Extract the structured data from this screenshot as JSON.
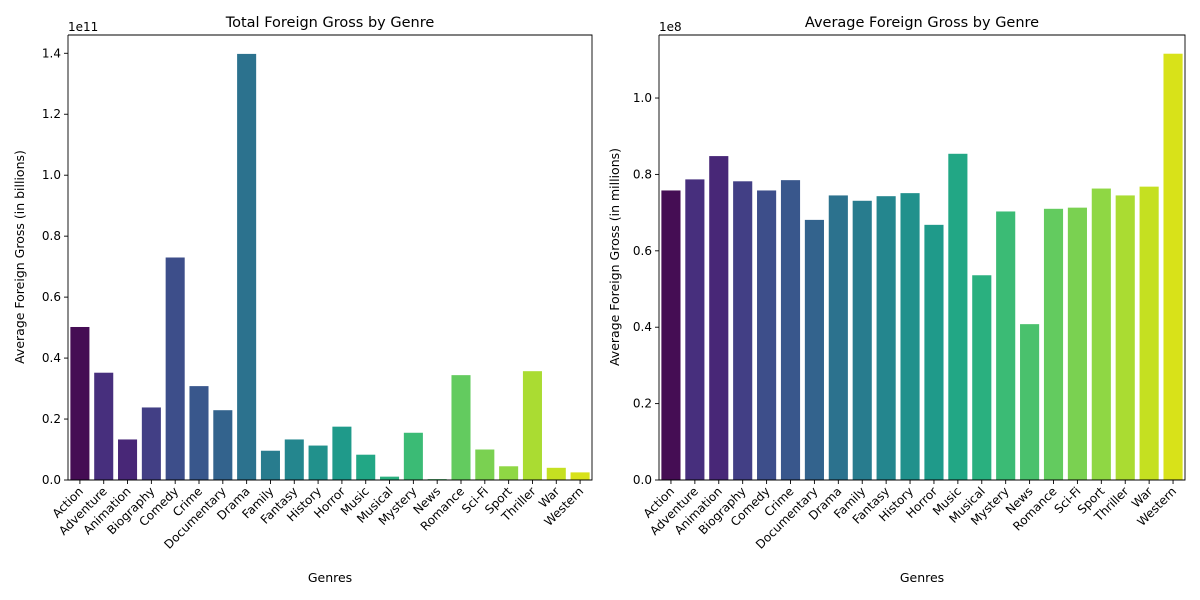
{
  "chart_data": [
    {
      "type": "bar",
      "title": "Total Foreign Gross by Genre",
      "xlabel": "Genres",
      "ylabel": "Average Foreign Gross (in billions)",
      "offset_text": "1e11",
      "ylim": [
        0,
        1.46
      ],
      "yticks": [
        0.0,
        0.2,
        0.4,
        0.6,
        0.8,
        1.0,
        1.2,
        1.4
      ],
      "ytick_labels": [
        "0.0",
        "0.2",
        "0.4",
        "0.6",
        "0.8",
        "1.0",
        "1.2",
        "1.4"
      ],
      "grid": false,
      "palette": "viridis",
      "categories": [
        "Action",
        "Adventure",
        "Animation",
        "Biography",
        "Comedy",
        "Crime",
        "Documentary",
        "Drama",
        "Family",
        "Fantasy",
        "History",
        "Horror",
        "Music",
        "Musical",
        "Mystery",
        "News",
        "Romance",
        "Sci-Fi",
        "Sport",
        "Thriller",
        "War",
        "Western"
      ],
      "values": [
        0.502,
        0.352,
        0.133,
        0.238,
        0.73,
        0.308,
        0.229,
        1.398,
        0.096,
        0.133,
        0.113,
        0.175,
        0.083,
        0.011,
        0.155,
        0.003,
        0.344,
        0.1,
        0.045,
        0.357,
        0.04,
        0.025
      ]
    },
    {
      "type": "bar",
      "title": "Average Foreign Gross by Genre",
      "xlabel": "Genres",
      "ylabel": "Average Foreign Gross (in millions)",
      "offset_text": "1e8",
      "ylim": [
        0,
        1.165
      ],
      "yticks": [
        0.0,
        0.2,
        0.4,
        0.6,
        0.8,
        1.0
      ],
      "ytick_labels": [
        "0.0",
        "0.2",
        "0.4",
        "0.6",
        "0.8",
        "1.0"
      ],
      "grid": false,
      "palette": "viridis",
      "categories": [
        "Action",
        "Adventure",
        "Animation",
        "Biography",
        "Comedy",
        "Crime",
        "Documentary",
        "Drama",
        "Family",
        "Fantasy",
        "History",
        "Horror",
        "Music",
        "Musical",
        "Mystery",
        "News",
        "Romance",
        "Sci-Fi",
        "Sport",
        "Thriller",
        "War",
        "Western"
      ],
      "values": [
        0.758,
        0.787,
        0.848,
        0.782,
        0.758,
        0.785,
        0.681,
        0.745,
        0.731,
        0.743,
        0.751,
        0.668,
        0.854,
        0.536,
        0.703,
        0.408,
        0.71,
        0.713,
        0.763,
        0.745,
        0.768,
        1.116
      ]
    }
  ],
  "colors": {
    "bars": [
      "#450d54",
      "#472f7d",
      "#482777",
      "#423f85",
      "#3d4e8a",
      "#39578c",
      "#33638d",
      "#2c728e",
      "#287c8e",
      "#24868e",
      "#21918c",
      "#1f9a8a",
      "#22a785",
      "#2ab07f",
      "#3bbb75",
      "#4ac16d",
      "#63cb5f",
      "#7ad151",
      "#8fd744",
      "#aadc32",
      "#c5e021",
      "#d8e219"
    ]
  }
}
